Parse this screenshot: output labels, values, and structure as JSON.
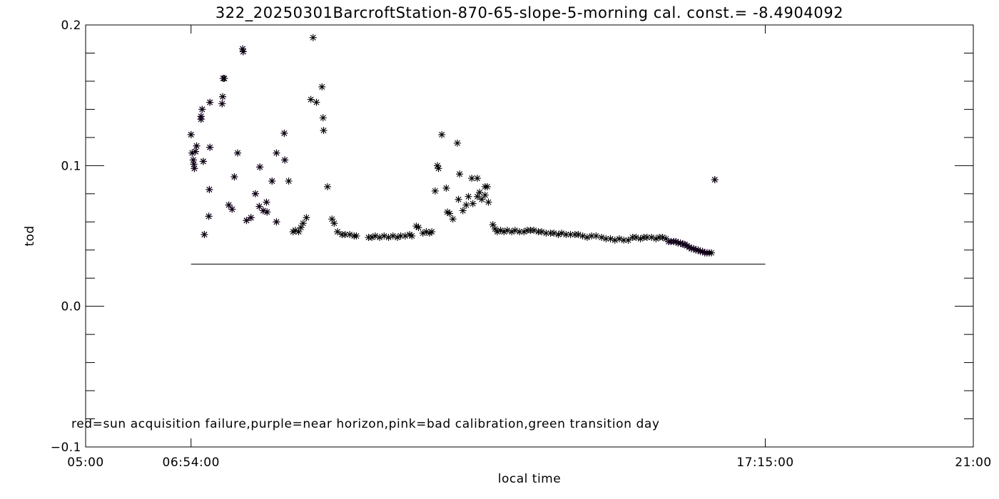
{
  "chart_data": {
    "type": "scatter",
    "title": "322_20250301BarcroftStation-870-65-slope-5-morning cal. const.= -8.4904092",
    "xlabel": "local time",
    "ylabel": "tod",
    "x_unit": "hours",
    "xlim": [
      5.0,
      21.0
    ],
    "ylim": [
      -0.1,
      0.2
    ],
    "x_ticks": [
      {
        "value": 5.0,
        "label": "05:00"
      },
      {
        "value": 6.9,
        "label": "06:54:00"
      },
      {
        "value": 17.25,
        "label": "17:15:00"
      },
      {
        "value": 21.0,
        "label": "21:00"
      }
    ],
    "y_ticks": [
      {
        "value": -0.1,
        "label": "−0.1"
      },
      {
        "value": 0.0,
        "label": "0.0"
      },
      {
        "value": 0.1,
        "label": "0.1"
      },
      {
        "value": 0.2,
        "label": "0.2"
      }
    ],
    "note": "red=sun acquisition failure,purple=near horizon,pink=bad calibration,green transition day",
    "colors": {
      "normal": "#000000",
      "near_horizon": "#8b00c8"
    },
    "reference_line": {
      "y": 0.03,
      "x": [
        6.9,
        17.25
      ]
    },
    "series": [
      {
        "name": "purple",
        "color": "#8b00c8",
        "points": [
          [
            6.9,
            0.122
          ],
          [
            6.92,
            0.109
          ],
          [
            6.94,
            0.104
          ],
          [
            6.95,
            0.101
          ],
          [
            6.96,
            0.098
          ],
          [
            6.98,
            0.11
          ],
          [
            7.0,
            0.114
          ],
          [
            7.08,
            0.133
          ],
          [
            7.08,
            0.135
          ],
          [
            7.1,
            0.14
          ],
          [
            7.12,
            0.103
          ],
          [
            7.14,
            0.051
          ],
          [
            7.22,
            0.064
          ],
          [
            7.23,
            0.083
          ],
          [
            7.24,
            0.113
          ],
          [
            7.24,
            0.145
          ],
          [
            7.46,
            0.144
          ],
          [
            7.47,
            0.149
          ],
          [
            7.48,
            0.162
          ],
          [
            7.5,
            0.162
          ],
          [
            7.58,
            0.072
          ],
          [
            7.64,
            0.069
          ],
          [
            7.68,
            0.092
          ],
          [
            7.74,
            0.109
          ],
          [
            7.83,
            0.183
          ],
          [
            7.84,
            0.181
          ],
          [
            7.9,
            0.061
          ],
          [
            7.98,
            0.063
          ],
          [
            8.06,
            0.08
          ],
          [
            8.13,
            0.071
          ],
          [
            8.14,
            0.099
          ],
          [
            8.2,
            0.068
          ],
          [
            8.26,
            0.074
          ],
          [
            8.27,
            0.067
          ],
          [
            8.36,
            0.089
          ],
          [
            8.44,
            0.06
          ],
          [
            8.44,
            0.109
          ],
          [
            8.58,
            0.123
          ],
          [
            8.59,
            0.104
          ],
          [
            15.51,
            0.046
          ],
          [
            15.55,
            0.046
          ],
          [
            15.6,
            0.046
          ],
          [
            15.64,
            0.046
          ],
          [
            15.68,
            0.045
          ],
          [
            15.72,
            0.045
          ],
          [
            15.77,
            0.044
          ],
          [
            15.8,
            0.044
          ],
          [
            15.84,
            0.043
          ],
          [
            15.88,
            0.042
          ],
          [
            15.92,
            0.041
          ],
          [
            15.96,
            0.041
          ],
          [
            16.0,
            0.04
          ],
          [
            16.04,
            0.04
          ],
          [
            16.08,
            0.039
          ],
          [
            16.12,
            0.039
          ],
          [
            16.16,
            0.038
          ],
          [
            16.2,
            0.038
          ],
          [
            16.24,
            0.038
          ],
          [
            16.34,
            0.09
          ]
        ]
      },
      {
        "name": "black",
        "color": "#000000",
        "points": [
          [
            8.66,
            0.089
          ],
          [
            8.74,
            0.053
          ],
          [
            8.78,
            0.054
          ],
          [
            8.84,
            0.053
          ],
          [
            8.88,
            0.056
          ],
          [
            8.92,
            0.059
          ],
          [
            8.98,
            0.063
          ],
          [
            9.06,
            0.147
          ],
          [
            9.1,
            0.191
          ],
          [
            9.16,
            0.145
          ],
          [
            9.26,
            0.156
          ],
          [
            9.28,
            0.134
          ],
          [
            9.29,
            0.125
          ],
          [
            9.36,
            0.085
          ],
          [
            9.44,
            0.062
          ],
          [
            9.48,
            0.059
          ],
          [
            9.54,
            0.053
          ],
          [
            9.62,
            0.051
          ],
          [
            9.68,
            0.051
          ],
          [
            9.76,
            0.051
          ],
          [
            9.84,
            0.05
          ],
          [
            9.88,
            0.05
          ],
          [
            10.1,
            0.049
          ],
          [
            10.16,
            0.049
          ],
          [
            10.22,
            0.05
          ],
          [
            10.3,
            0.049
          ],
          [
            10.38,
            0.05
          ],
          [
            10.46,
            0.049
          ],
          [
            10.54,
            0.05
          ],
          [
            10.62,
            0.049
          ],
          [
            10.68,
            0.05
          ],
          [
            10.76,
            0.05
          ],
          [
            10.84,
            0.051
          ],
          [
            10.88,
            0.05
          ],
          [
            10.96,
            0.057
          ],
          [
            11.0,
            0.056
          ],
          [
            11.08,
            0.052
          ],
          [
            11.14,
            0.053
          ],
          [
            11.2,
            0.052
          ],
          [
            11.24,
            0.053
          ],
          [
            11.3,
            0.082
          ],
          [
            11.34,
            0.1
          ],
          [
            11.36,
            0.098
          ],
          [
            11.42,
            0.122
          ],
          [
            11.5,
            0.084
          ],
          [
            11.52,
            0.067
          ],
          [
            11.56,
            0.066
          ],
          [
            11.62,
            0.062
          ],
          [
            11.7,
            0.116
          ],
          [
            11.72,
            0.076
          ],
          [
            11.74,
            0.094
          ],
          [
            11.8,
            0.068
          ],
          [
            11.86,
            0.072
          ],
          [
            11.9,
            0.078
          ],
          [
            11.96,
            0.091
          ],
          [
            11.98,
            0.073
          ],
          [
            12.06,
            0.091
          ],
          [
            12.06,
            0.078
          ],
          [
            12.1,
            0.081
          ],
          [
            12.14,
            0.076
          ],
          [
            12.2,
            0.079
          ],
          [
            12.2,
            0.085
          ],
          [
            12.24,
            0.085
          ],
          [
            12.26,
            0.074
          ],
          [
            12.34,
            0.058
          ],
          [
            12.38,
            0.055
          ],
          [
            12.42,
            0.053
          ],
          [
            12.48,
            0.054
          ],
          [
            12.54,
            0.053
          ],
          [
            12.6,
            0.054
          ],
          [
            12.68,
            0.053
          ],
          [
            12.74,
            0.054
          ],
          [
            12.82,
            0.053
          ],
          [
            12.9,
            0.053
          ],
          [
            12.96,
            0.054
          ],
          [
            13.02,
            0.054
          ],
          [
            13.08,
            0.054
          ],
          [
            13.16,
            0.053
          ],
          [
            13.22,
            0.053
          ],
          [
            13.3,
            0.052
          ],
          [
            13.38,
            0.052
          ],
          [
            13.44,
            0.052
          ],
          [
            13.52,
            0.051
          ],
          [
            13.58,
            0.052
          ],
          [
            13.66,
            0.051
          ],
          [
            13.74,
            0.051
          ],
          [
            13.82,
            0.051
          ],
          [
            13.88,
            0.051
          ],
          [
            13.96,
            0.05
          ],
          [
            14.04,
            0.049
          ],
          [
            14.12,
            0.05
          ],
          [
            14.2,
            0.05
          ],
          [
            14.3,
            0.049
          ],
          [
            14.38,
            0.048
          ],
          [
            14.46,
            0.048
          ],
          [
            14.54,
            0.047
          ],
          [
            14.62,
            0.048
          ],
          [
            14.7,
            0.047
          ],
          [
            14.78,
            0.047
          ],
          [
            14.86,
            0.049
          ],
          [
            14.92,
            0.049
          ],
          [
            15.0,
            0.048
          ],
          [
            15.06,
            0.049
          ],
          [
            15.12,
            0.049
          ],
          [
            15.2,
            0.049
          ],
          [
            15.28,
            0.048
          ],
          [
            15.34,
            0.049
          ],
          [
            15.4,
            0.049
          ],
          [
            15.46,
            0.048
          ],
          [
            16.28,
            0.038
          ]
        ]
      }
    ]
  }
}
